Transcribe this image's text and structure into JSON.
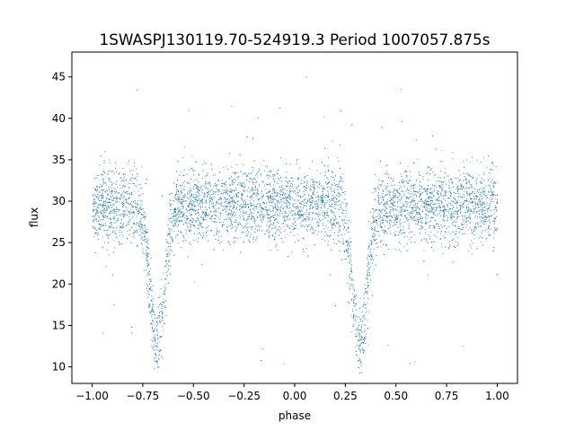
{
  "chart_data": {
    "type": "scatter",
    "title": "1SWASPJ130119.70-524919.3 Period 1007057.875s",
    "xlabel": "phase",
    "ylabel": "flux",
    "xlim": [
      -1.1,
      1.1
    ],
    "ylim": [
      8,
      48
    ],
    "x_ticks": [
      -1.0,
      -0.75,
      -0.5,
      -0.25,
      0.0,
      0.25,
      0.5,
      0.75,
      1.0
    ],
    "x_tick_labels": [
      "−1.00",
      "−0.75",
      "−0.50",
      "−0.25",
      "0.00",
      "0.25",
      "0.50",
      "0.75",
      "1.00"
    ],
    "y_ticks": [
      10,
      15,
      20,
      25,
      30,
      35,
      40,
      45
    ],
    "y_tick_labels": [
      "10",
      "15",
      "20",
      "25",
      "30",
      "35",
      "40",
      "45"
    ],
    "grid": false,
    "marker_color": "#1f77b4",
    "series": [
      {
        "x_range": [
          -1.0,
          1.0
        ],
        "baseline_flux": 29.5,
        "baseline_scatter": 2.2,
        "eclipses": [
          {
            "phase": -0.68,
            "min_flux": 13.0
          },
          {
            "phase": 0.32,
            "min_flux": 13.0
          }
        ],
        "outlier_range": [
          10,
          46
        ]
      }
    ]
  }
}
